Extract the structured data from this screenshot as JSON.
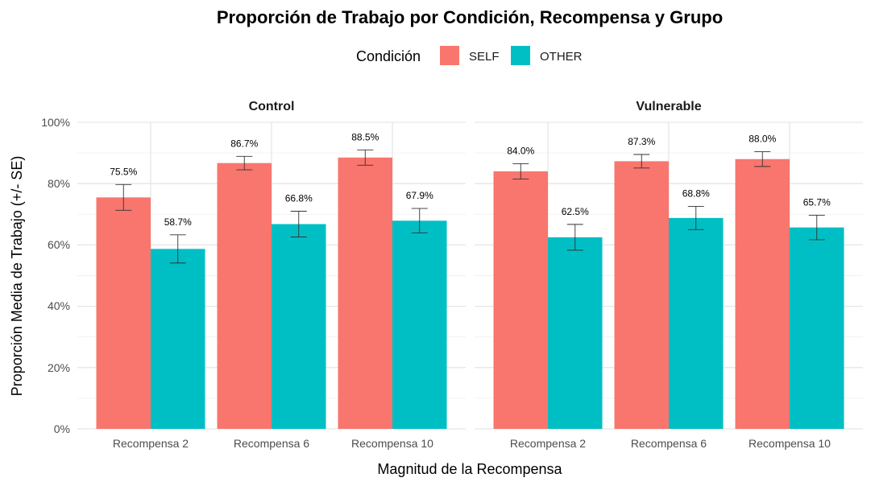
{
  "chart_data": {
    "type": "bar",
    "title": "Proporción de Trabajo por Condición, Recompensa y Grupo",
    "xlabel": "Magnitud de la Recompensa",
    "ylabel": "Proporción Media de Trabajo (+/- SE)",
    "ylim": [
      0,
      1
    ],
    "yticks": [
      {
        "value": 0,
        "label": "0%"
      },
      {
        "value": 0.2,
        "label": "20%"
      },
      {
        "value": 0.4,
        "label": "40%"
      },
      {
        "value": 0.6,
        "label": "60%"
      },
      {
        "value": 0.8,
        "label": "80%"
      },
      {
        "value": 1.0,
        "label": "100%"
      }
    ],
    "grid": true,
    "legend": {
      "title": "Condición",
      "placement": "top",
      "entries": [
        {
          "name": "SELF",
          "color": "#F8766D"
        },
        {
          "name": "OTHER",
          "color": "#00BFC4"
        }
      ]
    },
    "categories": [
      "Recompensa 2",
      "Recompensa 6",
      "Recompensa 10"
    ],
    "panels": [
      {
        "name": "Control",
        "series": [
          {
            "name": "SELF",
            "color": "#F8766D",
            "values": [
              0.755,
              0.867,
              0.885
            ],
            "se": [
              0.042,
              0.022,
              0.025
            ],
            "labels": [
              "75.5%",
              "86.7%",
              "88.5%"
            ]
          },
          {
            "name": "OTHER",
            "color": "#00BFC4",
            "values": [
              0.587,
              0.668,
              0.679
            ],
            "se": [
              0.046,
              0.042,
              0.04
            ],
            "labels": [
              "58.7%",
              "66.8%",
              "67.9%"
            ]
          }
        ]
      },
      {
        "name": "Vulnerable",
        "series": [
          {
            "name": "SELF",
            "color": "#F8766D",
            "values": [
              0.84,
              0.873,
              0.88
            ],
            "se": [
              0.025,
              0.022,
              0.024
            ],
            "labels": [
              "84.0%",
              "87.3%",
              "88.0%"
            ]
          },
          {
            "name": "OTHER",
            "color": "#00BFC4",
            "values": [
              0.625,
              0.688,
              0.657
            ],
            "se": [
              0.042,
              0.038,
              0.04
            ],
            "labels": [
              "62.5%",
              "68.8%",
              "65.7%"
            ]
          }
        ]
      }
    ]
  }
}
